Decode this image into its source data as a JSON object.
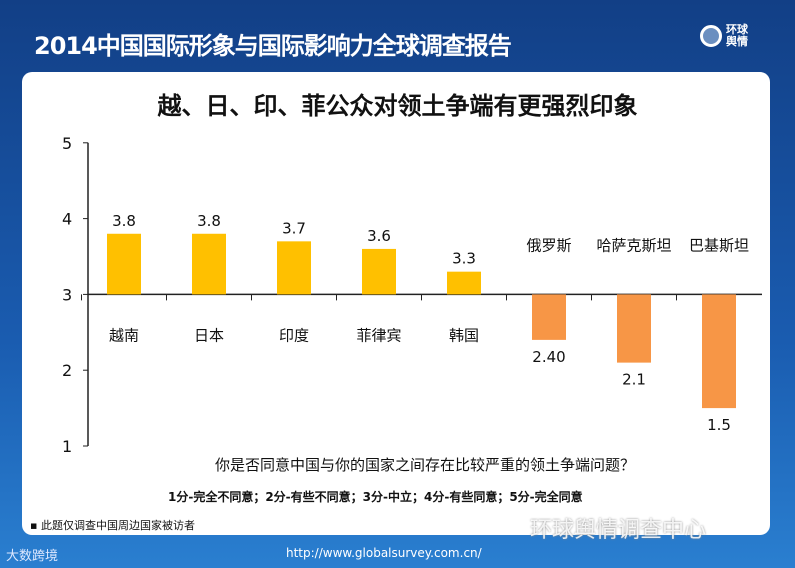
{
  "header": {
    "title": "2014中国国际形象与国际影响力全球调查报告",
    "logo_text": "环球舆情"
  },
  "chart_data": {
    "type": "bar",
    "title": "越、日、印、菲公众对领土争端有更强烈印象",
    "categories": [
      "越南",
      "日本",
      "印度",
      "菲律宾",
      "韩国",
      "俄罗斯",
      "哈萨克斯坦",
      "巴基斯坦"
    ],
    "values": [
      3.8,
      3.8,
      3.7,
      3.6,
      3.3,
      2.4,
      2.1,
      1.5
    ],
    "value_labels": [
      "3.8",
      "3.8",
      "3.7",
      "3.6",
      "3.3",
      "2.40",
      "2.1",
      "1.5"
    ],
    "baseline": 3,
    "ylim": [
      1,
      5
    ],
    "yticks": [
      "1",
      "2",
      "3",
      "4",
      "5"
    ],
    "colors": {
      "above": "#ffc000",
      "below": "#f79646"
    },
    "xlabel": "你是否同意中国与你的国家之间存在比较严重的领土争端问题？",
    "grid": false
  },
  "scale_note": "1分-完全不同意；2分-有些不同意；3分-中立；4分-有些同意；5分-完全同意",
  "footnote": "此题仅调查中国周边国家被访者",
  "watermark": "环球舆情调查中心",
  "url": "http://www.globalsurvey.com.cn/",
  "corner_brand": "大数跨境"
}
